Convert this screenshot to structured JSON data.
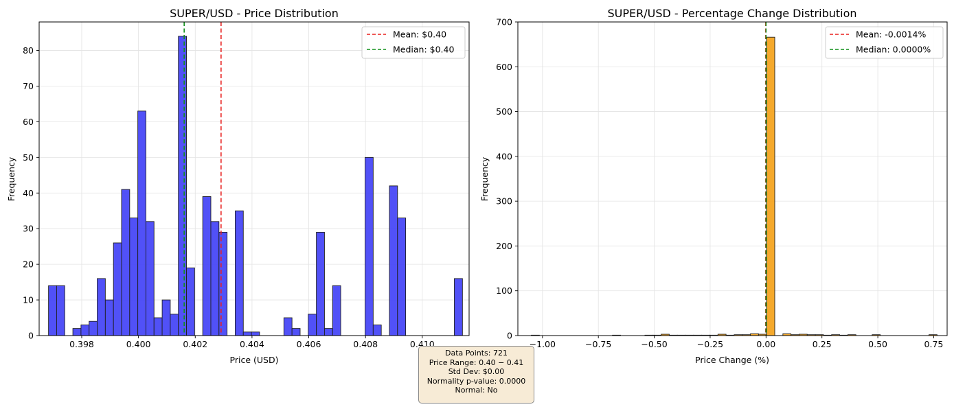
{
  "chart_data": [
    {
      "type": "bar",
      "title": "SUPER/USD - Price Distribution",
      "xlabel": "Price (USD)",
      "ylabel": "Frequency",
      "xlim": [
        0.3965,
        0.41165
      ],
      "ylim": [
        0,
        88
      ],
      "xticks": [
        0.398,
        0.4,
        0.402,
        0.404,
        0.406,
        0.408,
        0.41
      ],
      "xtick_labels": [
        "0.398",
        "0.400",
        "0.402",
        "0.404",
        "0.406",
        "0.408",
        "0.410"
      ],
      "yticks": [
        0,
        10,
        20,
        30,
        40,
        50,
        60,
        70,
        80
      ],
      "ytick_labels": [
        "0",
        "10",
        "20",
        "30",
        "40",
        "50",
        "60",
        "70",
        "80"
      ],
      "bin_start": 0.39683,
      "bin_width": 0.000286,
      "counts": [
        14,
        14,
        0,
        2,
        3,
        4,
        16,
        10,
        26,
        41,
        33,
        63,
        32,
        5,
        10,
        6,
        84,
        19,
        0,
        39,
        32,
        29,
        0,
        35,
        1,
        1,
        0,
        0,
        0,
        5,
        2,
        0,
        6,
        29,
        2,
        14,
        0,
        0,
        0,
        50,
        3,
        0,
        42,
        33,
        0,
        0,
        0,
        0,
        0,
        0,
        16
      ],
      "bar_color": "#4a4af7",
      "edge_color": "#1f1f1f",
      "grid": true,
      "vlines": [
        {
          "name": "mean",
          "x": 0.40291,
          "color": "#e8201f",
          "style": "dashed"
        },
        {
          "name": "median",
          "x": 0.40161,
          "color": "#10901a",
          "style": "dashed"
        }
      ],
      "legend": {
        "placement": "top-right",
        "entries": [
          {
            "label": "Mean: $0.40",
            "color": "#e8201f"
          },
          {
            "label": "Median: $0.40",
            "color": "#10901a"
          }
        ]
      }
    },
    {
      "type": "bar",
      "title": "SUPER/USD - Percentage Change Distribution",
      "xlabel": "Price Change (%)",
      "ylabel": "Frequency",
      "xlim": [
        -1.11,
        0.81
      ],
      "ylim": [
        0,
        700
      ],
      "xticks": [
        -1.0,
        -0.75,
        -0.5,
        -0.25,
        0.0,
        0.25,
        0.5,
        0.75
      ],
      "xtick_labels": [
        "−1.00",
        "−0.75",
        "−0.50",
        "−0.25",
        "0.00",
        "0.25",
        "0.50",
        "0.75"
      ],
      "yticks": [
        0,
        100,
        200,
        300,
        400,
        500,
        600,
        700
      ],
      "ytick_labels": [
        "0",
        "100",
        "200",
        "300",
        "400",
        "500",
        "600",
        "700"
      ],
      "bin_start": -1.05,
      "bin_width": 0.0363,
      "counts": [
        1,
        0,
        0,
        0,
        0,
        0,
        0,
        0,
        0,
        0,
        1,
        0,
        0,
        0,
        1,
        1,
        3,
        1,
        1,
        1,
        1,
        1,
        1,
        3,
        1,
        2,
        2,
        4,
        3,
        666,
        0,
        4,
        2,
        3,
        2,
        2,
        1,
        2,
        1,
        2,
        0,
        0,
        2,
        0,
        0,
        0,
        0,
        0,
        0,
        2
      ],
      "bar_color": "#f5a623",
      "edge_color": "#1f1f1f",
      "grid": true,
      "vlines": [
        {
          "name": "mean",
          "x": -0.0014,
          "color": "#e8201f",
          "style": "dashed"
        },
        {
          "name": "median",
          "x": 0.0,
          "color": "#10901a",
          "style": "dashed"
        }
      ],
      "legend": {
        "placement": "top-right",
        "entries": [
          {
            "label": "Mean: -0.0014%",
            "color": "#e8201f"
          },
          {
            "label": "Median: 0.0000%",
            "color": "#10901a"
          }
        ]
      }
    }
  ],
  "stats_box": {
    "lines": [
      "Data Points: 721",
      "Price Range: 0.40 − 0.41",
      "Std Dev: $0.00",
      "Normality p-value: 0.0000",
      "Normal: No"
    ]
  }
}
